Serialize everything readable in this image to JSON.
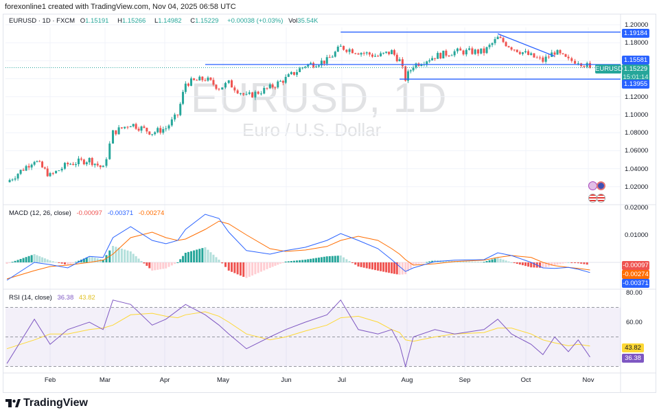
{
  "credit": "forexonline1 created with TradingView.com, Nov 04, 2025 06:58 UTC",
  "legend": {
    "symbol": "EURUSD · 1D · FXCM",
    "o_label": "O",
    "o": "1.15191",
    "h_label": "H",
    "h": "1.15266",
    "l_label": "L",
    "l": "1.14982",
    "c_label": "C",
    "c": "1.15229",
    "change": "+0.00038 (+0.03%)",
    "vol_label": "Vol",
    "vol": "35.54K"
  },
  "watermark": {
    "title": "EURUSD, 1D",
    "subtitle": "Euro / U.S. Dollar"
  },
  "price_axis": {
    "ticks": [
      "1.20000",
      "1.18000",
      "1.12000",
      "1.10000",
      "1.08000",
      "1.06000",
      "1.04000",
      "1.02000"
    ],
    "badges": {
      "upper": "1.19184",
      "middle": "1.15581",
      "last": "1.15229",
      "countdown": "15:01:14",
      "lower": "1.13955",
      "symbol_tag": "EURUSD"
    }
  },
  "macd": {
    "label": "MACD (12, 26, close)",
    "hist": "-0.00097",
    "macd": "-0.00371",
    "signal": "-0.00274",
    "ticks": [
      "0.02000",
      "0.01000"
    ]
  },
  "rsi": {
    "label": "RSI (14, close)",
    "value": "36.38",
    "ma": "43.82",
    "ticks": [
      "80.00",
      "60.00"
    ]
  },
  "time_axis": [
    "Feb",
    "Mar",
    "Apr",
    "May",
    "Jun",
    "Jul",
    "Aug",
    "Sep",
    "Oct",
    "Nov"
  ],
  "footer": {
    "brand": "TradingView"
  },
  "colors": {
    "up": "#26a69a",
    "down": "#ef5350",
    "level_line": "#2962ff",
    "macd": "#2962ff",
    "signal": "#ff6d00",
    "rsi": "#7e57c2",
    "rsi_ma": "#fdd835"
  },
  "chart_data": {
    "type": "candlestick",
    "symbol": "EURUSD",
    "interval": "1D",
    "ylim": [
      1.01,
      1.205
    ],
    "dates": [
      "2025-01-10",
      "2025-01-24",
      "2025-02-01",
      "2025-02-10",
      "2025-02-21",
      "2025-02-28",
      "2025-03-05",
      "2025-03-14",
      "2025-03-25",
      "2025-04-01",
      "2025-04-07",
      "2025-04-11",
      "2025-04-21",
      "2025-04-28",
      "2025-05-03",
      "2025-05-12",
      "2025-05-24",
      "2025-06-01",
      "2025-06-11",
      "2025-06-22",
      "2025-06-29",
      "2025-07-08",
      "2025-07-18",
      "2025-07-25",
      "2025-07-29",
      "2025-08-01",
      "2025-08-05",
      "2025-08-16",
      "2025-08-26",
      "2025-09-10",
      "2025-09-17",
      "2025-09-24",
      "2025-10-04",
      "2025-10-10",
      "2025-10-16",
      "2025-10-23",
      "2025-10-28",
      "2025-11-03"
    ],
    "close": [
      1.025,
      1.05,
      1.032,
      1.045,
      1.05,
      1.04,
      1.08,
      1.09,
      1.08,
      1.085,
      1.1,
      1.135,
      1.14,
      1.13,
      1.135,
      1.12,
      1.13,
      1.14,
      1.155,
      1.16,
      1.175,
      1.17,
      1.165,
      1.17,
      1.16,
      1.14,
      1.155,
      1.165,
      1.17,
      1.17,
      1.185,
      1.175,
      1.165,
      1.16,
      1.17,
      1.16,
      1.16,
      1.15229
    ],
    "levels": [
      {
        "value": 1.19184,
        "from": "2025-06-29"
      },
      {
        "value": 1.15581,
        "from": "2025-04-21"
      },
      {
        "value": 1.13955,
        "from": "2025-07-29"
      }
    ],
    "trendline": [
      [
        "2025-09-17",
        1.19
      ],
      [
        "2025-10-16",
        1.165
      ]
    ],
    "macd_line": [
      -0.0065,
      0,
      -0.0008,
      -0.002,
      0.0022,
      0.0018,
      0.009,
      0.013,
      0.008,
      0.0068,
      0.008,
      0.012,
      0.0175,
      0.016,
      0.011,
      0.0043,
      0.003,
      0.0043,
      0.0055,
      0.008,
      0.0105,
      0.008,
      0.005,
      0.001,
      -0.0015,
      -0.0033,
      -0.002,
      0.0003,
      0.0008,
      0.001,
      0.0035,
      0.0025,
      0,
      -0.002,
      -0.0022,
      -0.0018,
      -0.0025,
      -0.00371
    ],
    "signal_line": [
      -0.006,
      -0.003,
      -0.0015,
      -0.001,
      0,
      0.0008,
      0.003,
      0.009,
      0.011,
      0.009,
      0.008,
      0.0085,
      0.012,
      0.015,
      0.014,
      0.01,
      0.005,
      0.004,
      0.0045,
      0.0058,
      0.008,
      0.0095,
      0.008,
      0.005,
      0.003,
      0.001,
      -0.001,
      -0.0005,
      0.0003,
      0.0008,
      0.0018,
      0.0025,
      0.0018,
      0,
      -0.0012,
      -0.0018,
      -0.0022,
      -0.00274
    ],
    "macd_ylim": [
      -0.0075,
      0.02
    ],
    "rsi": [
      32,
      62,
      45,
      55,
      60,
      55,
      75,
      72,
      58,
      62,
      68,
      72,
      65,
      58,
      52,
      42,
      50,
      55,
      60,
      65,
      75,
      55,
      52,
      55,
      45,
      30,
      50,
      55,
      52,
      55,
      62,
      52,
      45,
      38,
      50,
      40,
      48,
      36.38
    ],
    "rsi_ma": [
      42,
      48,
      52,
      52,
      55,
      56,
      58,
      65,
      66,
      64,
      63,
      65,
      67,
      64,
      60,
      52,
      48,
      50,
      54,
      58,
      63,
      64,
      60,
      55,
      53,
      48,
      47,
      50,
      52,
      53,
      56,
      56,
      52,
      48,
      46,
      44,
      45,
      43.82
    ],
    "rsi_levels": [
      70,
      50,
      30
    ],
    "rsi_ylim": [
      25,
      80
    ]
  }
}
